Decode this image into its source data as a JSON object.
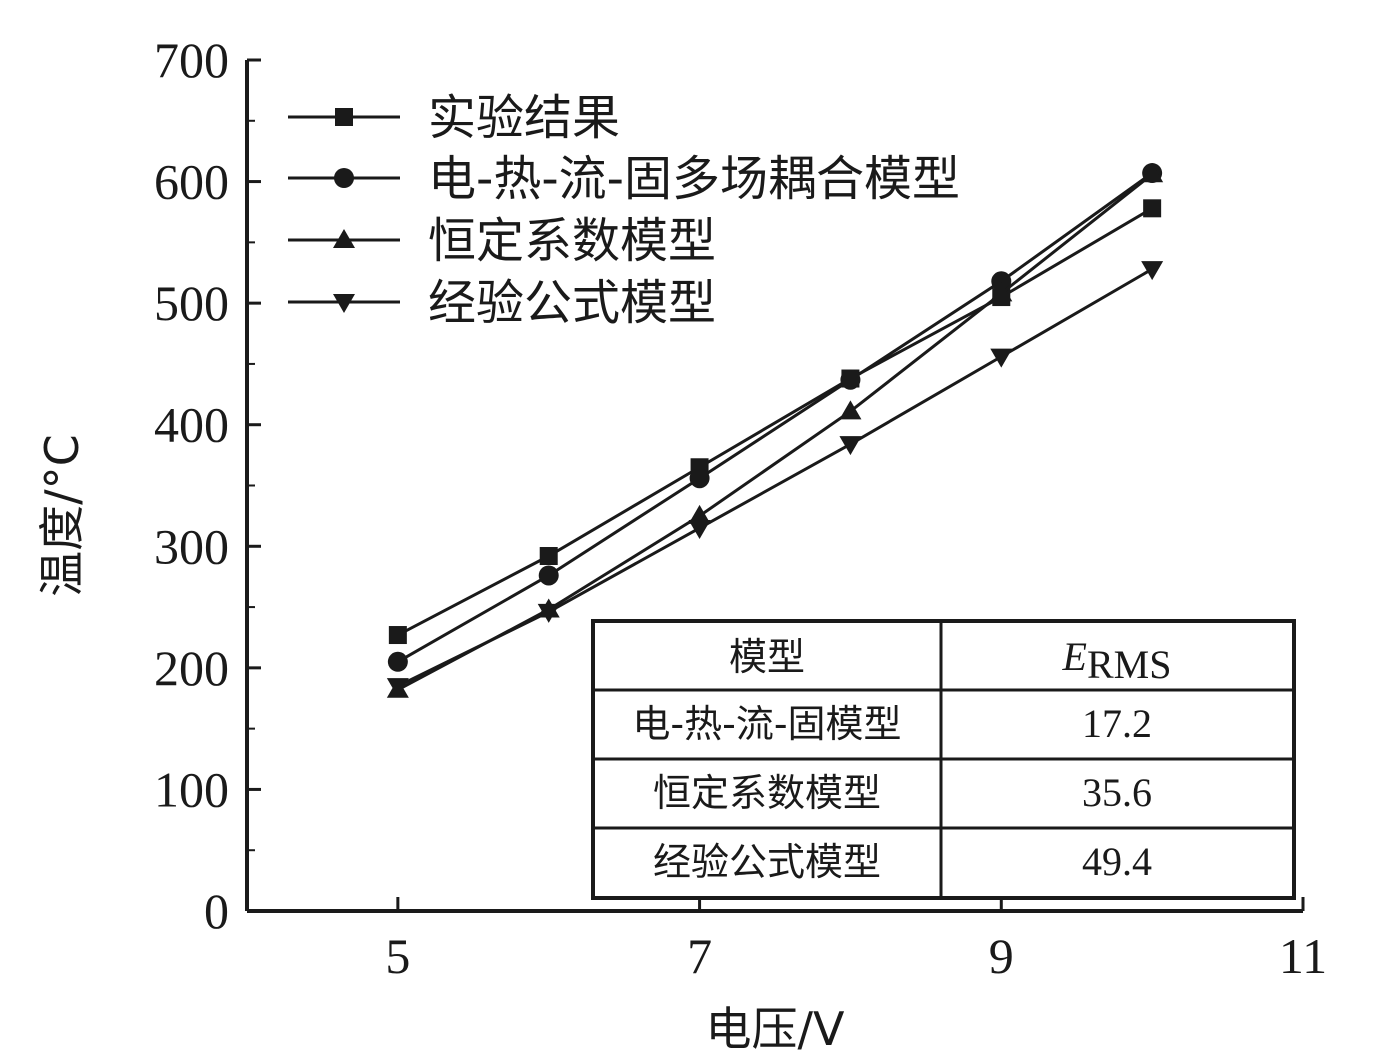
{
  "chart_data": {
    "type": "line",
    "xlabel": "电压/V",
    "ylabel": "温度/°C",
    "xlim": [
      4,
      11
    ],
    "ylim": [
      0,
      700
    ],
    "xticks": [
      5,
      7,
      9,
      11
    ],
    "yticks": [
      0,
      100,
      200,
      300,
      400,
      500,
      600,
      700
    ],
    "x": [
      5,
      6,
      7,
      8,
      9,
      10
    ],
    "legend_position": "top-left",
    "series": [
      {
        "name": "实验结果",
        "marker": "square",
        "values": [
          227,
          292,
          365,
          438,
          505,
          578
        ]
      },
      {
        "name": "电-热-流-固多场耦合模型",
        "marker": "circle",
        "values": [
          205,
          276,
          356,
          437,
          518,
          607
        ]
      },
      {
        "name": "恒定系数模型",
        "marker": "triangle-up",
        "values": [
          182,
          248,
          325,
          411,
          508,
          606
        ]
      },
      {
        "name": "经验公式模型",
        "marker": "triangle-down",
        "values": [
          185,
          246,
          315,
          384,
          456,
          528
        ]
      }
    ],
    "table": {
      "header": [
        "模型",
        "E",
        "RMS"
      ],
      "rows": [
        {
          "model": "电-热-流-固模型",
          "value": "17.2"
        },
        {
          "model": "恒定系数模型",
          "value": "35.6"
        },
        {
          "model": "经验公式模型",
          "value": "49.4"
        }
      ]
    }
  }
}
